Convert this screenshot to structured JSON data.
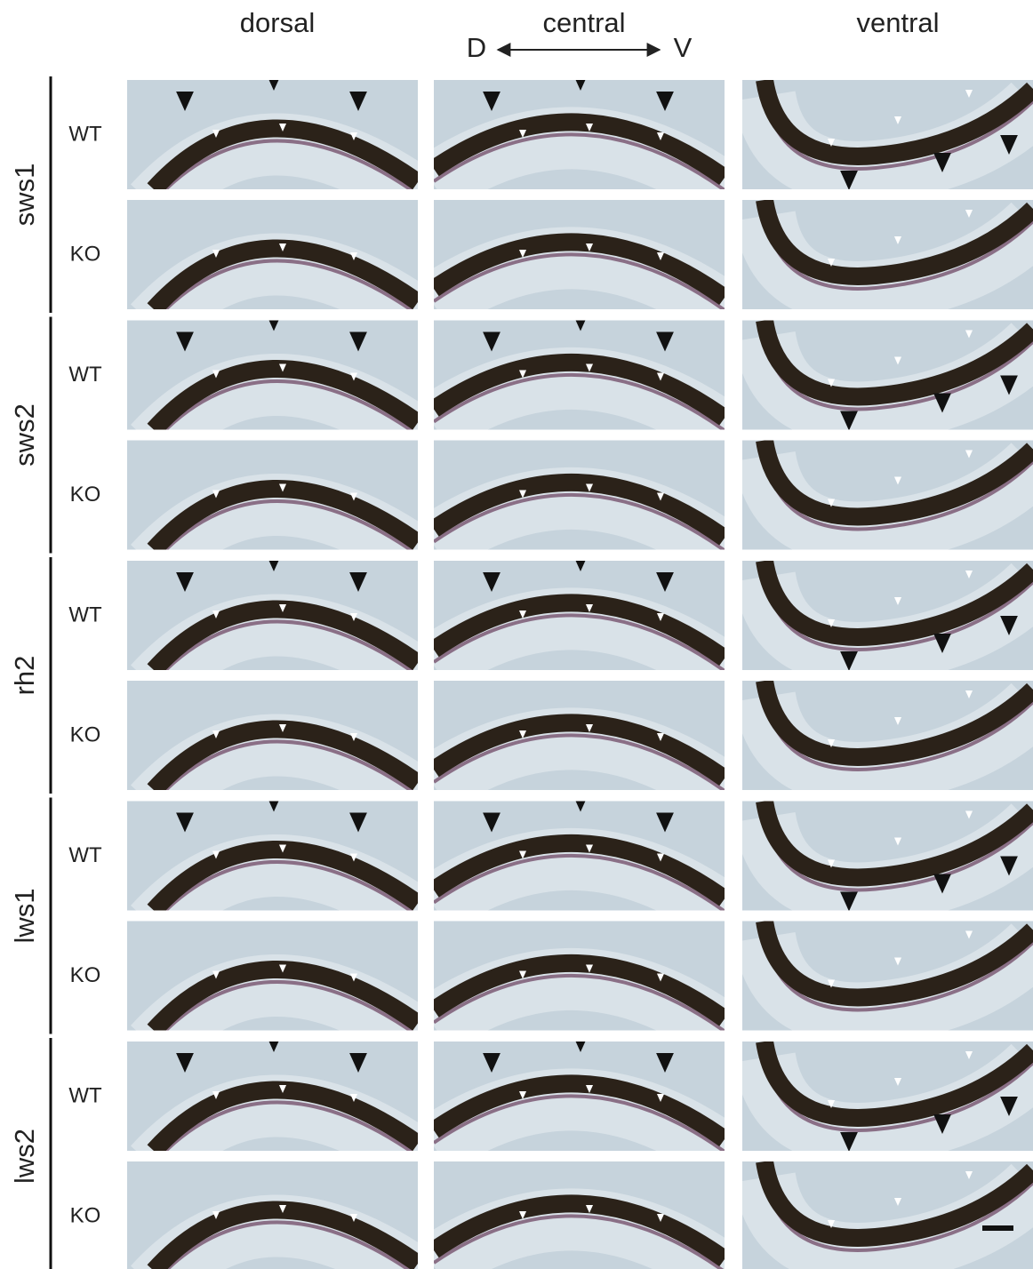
{
  "columns": [
    "dorsal",
    "central",
    "ventral"
  ],
  "axis": {
    "left": "D",
    "right": "V"
  },
  "rows": [
    {
      "gene": "sws1",
      "conditions": [
        "WT",
        "KO"
      ]
    },
    {
      "gene": "sws2",
      "conditions": [
        "WT",
        "KO"
      ]
    },
    {
      "gene": "rh2",
      "conditions": [
        "WT",
        "KO"
      ]
    },
    {
      "gene": "lws1",
      "conditions": [
        "WT",
        "KO"
      ]
    },
    {
      "gene": "lws2",
      "conditions": [
        "WT",
        "KO"
      ]
    }
  ]
}
